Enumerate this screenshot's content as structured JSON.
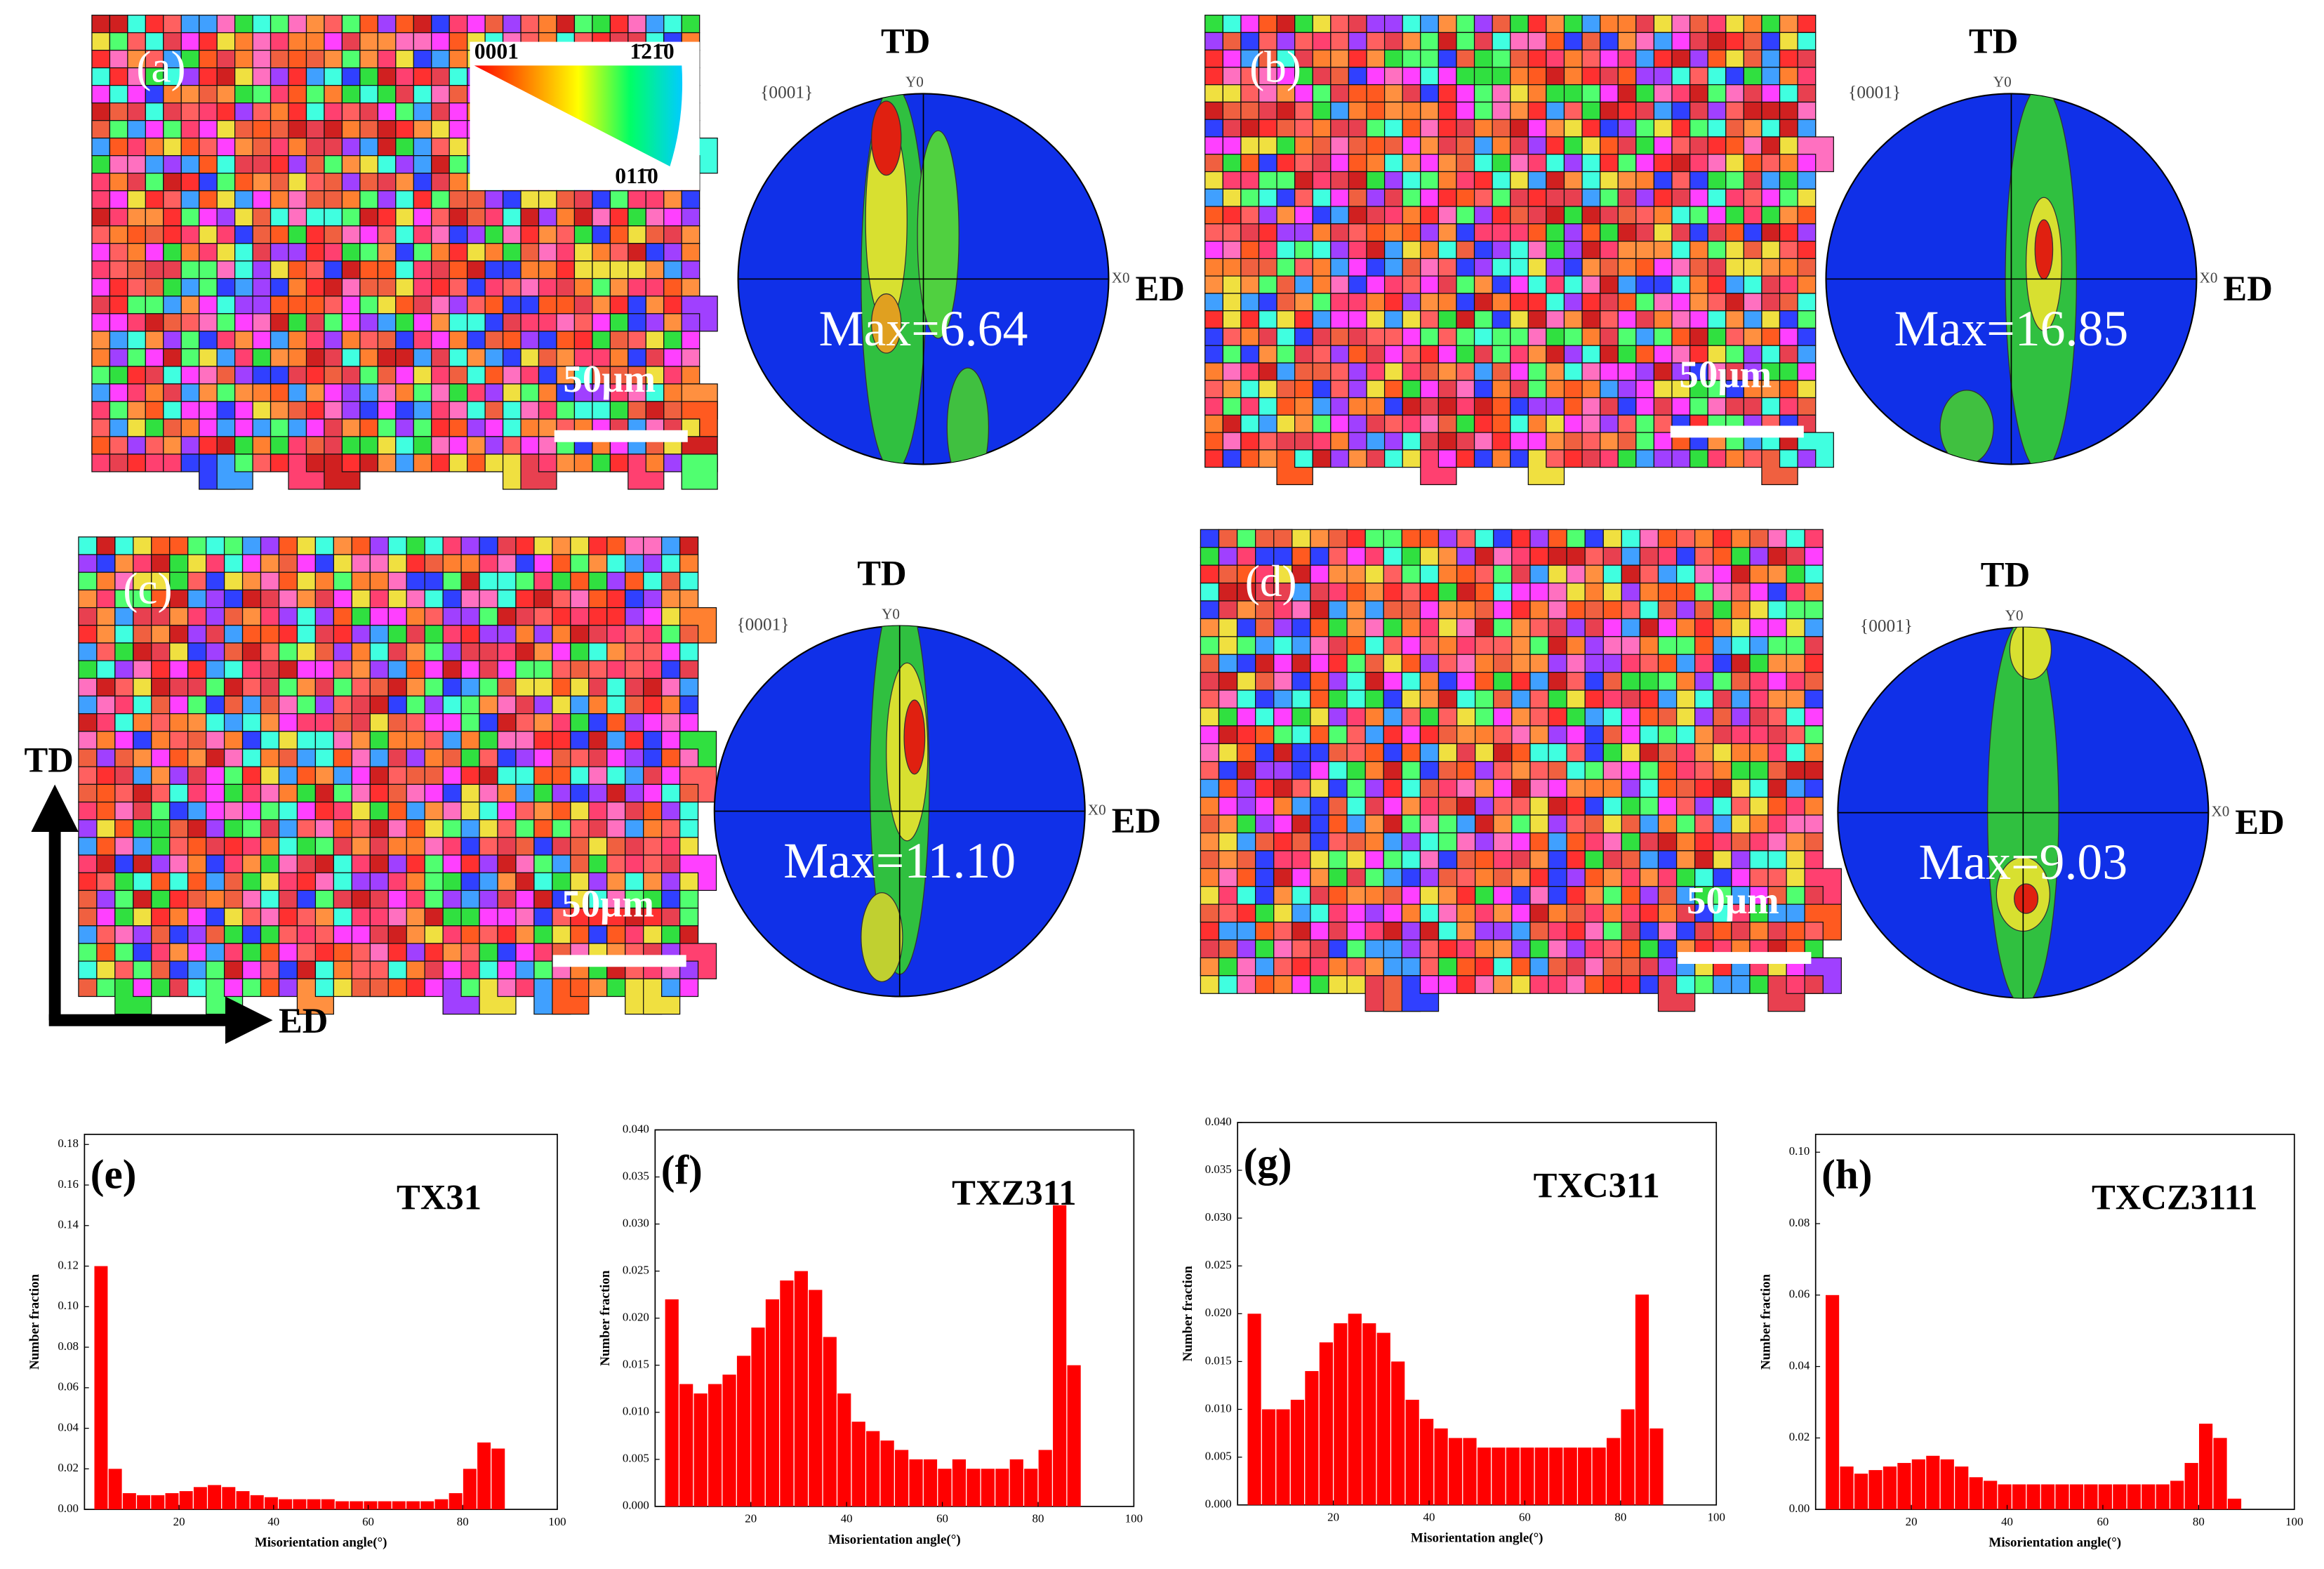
{
  "panels": [
    {
      "label": "(a)",
      "scale": "50μm",
      "pf": {
        "td": "TD",
        "ed": "ED",
        "set": "{0001}",
        "y0": "Y0",
        "x0": "X0",
        "max": "Max=6.64"
      }
    },
    {
      "label": "(b)",
      "scale": "50μm",
      "pf": {
        "td": "TD",
        "ed": "ED",
        "set": "{0001}",
        "y0": "Y0",
        "x0": "X0",
        "max": "Max=16.85"
      }
    },
    {
      "label": "(c)",
      "scale": "50μm",
      "pf": {
        "td": "TD",
        "ed": "ED",
        "set": "{0001}",
        "y0": "Y0",
        "x0": "X0",
        "max": "Max=11.10"
      }
    },
    {
      "label": "(d)",
      "scale": "50μm",
      "pf": {
        "td": "TD",
        "ed": "ED",
        "set": "{0001}",
        "y0": "Y0",
        "x0": "X0",
        "max": "Max=9.03"
      }
    }
  ],
  "key": [
    "0001",
    "1̄21̄0",
    "011̄0"
  ],
  "axes": {
    "td": "TD",
    "ed": "ED"
  },
  "chart_data": [
    {
      "type": "histogram",
      "label": "(e)",
      "title": "TX31",
      "xlabel": "Misorientation angle(°)",
      "ylabel": "Number fraction",
      "color": "#ff0000",
      "bins": [
        2,
        5,
        8,
        11,
        14,
        17,
        20,
        23,
        26,
        29,
        32,
        35,
        38,
        41,
        44,
        47,
        50,
        53,
        56,
        59,
        62,
        65,
        68,
        71,
        74,
        77,
        80,
        83,
        86,
        89,
        92
      ],
      "values": [
        0.12,
        0.02,
        0.008,
        0.007,
        0.007,
        0.008,
        0.009,
        0.011,
        0.012,
        0.011,
        0.009,
        0.007,
        0.006,
        0.005,
        0.005,
        0.005,
        0.005,
        0.004,
        0.004,
        0.004,
        0.004,
        0.004,
        0.004,
        0.004,
        0.005,
        0.008,
        0.02,
        0.033,
        0.03,
        0.0
      ],
      "xlim": [
        0,
        100
      ],
      "xticks": [
        20,
        40,
        60,
        80,
        100
      ],
      "ylim": [
        0,
        0.185
      ],
      "yticks": [
        {
          "value": 0,
          "label": "0.00"
        },
        0.02,
        0.04,
        0.06,
        0.08,
        {
          "value": 0.1,
          "label": "0.10"
        },
        0.12,
        0.14,
        0.16,
        0.18
      ]
    },
    {
      "type": "histogram",
      "label": "(f)",
      "title": "TXZ311",
      "xlabel": "Misorientation angle(°)",
      "ylabel": "Number fraction",
      "color": "#ff0000",
      "bins": [
        2,
        5,
        8,
        11,
        14,
        17,
        20,
        23,
        26,
        29,
        32,
        35,
        38,
        41,
        44,
        47,
        50,
        53,
        56,
        59,
        62,
        65,
        68,
        71,
        74,
        77,
        80,
        83,
        86,
        89,
        92
      ],
      "values": [
        0.022,
        0.013,
        0.012,
        0.013,
        0.014,
        0.016,
        0.019,
        0.022,
        0.024,
        0.025,
        0.023,
        0.018,
        0.012,
        0.009,
        0.008,
        0.007,
        0.006,
        0.005,
        0.005,
        0.004,
        0.005,
        0.004,
        0.004,
        0.004,
        0.005,
        0.004,
        0.006,
        0.032,
        0.015,
        0.0
      ],
      "xlim": [
        0,
        100
      ],
      "xticks": [
        20,
        40,
        60,
        80,
        100
      ],
      "ylim": [
        0,
        0.04
      ],
      "yticks": [
        {
          "value": 0,
          "label": "0.000"
        },
        0.005,
        {
          "value": 0.01,
          "label": "0.010"
        },
        0.015,
        {
          "value": 0.02,
          "label": "0.020"
        },
        0.025,
        {
          "value": 0.03,
          "label": "0.030"
        },
        0.035,
        {
          "value": 0.04,
          "label": "0.040"
        }
      ]
    },
    {
      "type": "histogram",
      "label": "(g)",
      "title": "TXC311",
      "xlabel": "Misorientation angle(°)",
      "ylabel": "Number fraction",
      "color": "#ff0000",
      "bins": [
        2,
        5,
        8,
        11,
        14,
        17,
        20,
        23,
        26,
        29,
        32,
        35,
        38,
        41,
        44,
        47,
        50,
        53,
        56,
        59,
        62,
        65,
        68,
        71,
        74,
        77,
        80,
        83,
        86,
        89,
        92
      ],
      "values": [
        0.02,
        0.01,
        0.01,
        0.011,
        0.014,
        0.017,
        0.019,
        0.02,
        0.019,
        0.018,
        0.015,
        0.011,
        0.009,
        0.008,
        0.007,
        0.007,
        0.006,
        0.006,
        0.006,
        0.006,
        0.006,
        0.006,
        0.006,
        0.006,
        0.006,
        0.007,
        0.01,
        0.022,
        0.008,
        0.0
      ],
      "xlim": [
        0,
        100
      ],
      "xticks": [
        20,
        40,
        60,
        80,
        100
      ],
      "ylim": [
        0,
        0.04
      ],
      "yticks": [
        {
          "value": 0,
          "label": "0.000"
        },
        0.005,
        {
          "value": 0.01,
          "label": "0.010"
        },
        0.015,
        {
          "value": 0.02,
          "label": "0.020"
        },
        0.025,
        {
          "value": 0.03,
          "label": "0.030"
        },
        0.035,
        {
          "value": 0.04,
          "label": "0.040"
        }
      ]
    },
    {
      "type": "histogram",
      "label": "(h)",
      "title": "TXCZ3111",
      "xlabel": "Misorientation angle(°)",
      "ylabel": "Number fraction",
      "color": "#ff0000",
      "bins": [
        2,
        5,
        8,
        11,
        14,
        17,
        20,
        23,
        26,
        29,
        32,
        35,
        38,
        41,
        44,
        47,
        50,
        53,
        56,
        59,
        62,
        65,
        68,
        71,
        74,
        77,
        80,
        83,
        86,
        89,
        92
      ],
      "values": [
        0.06,
        0.012,
        0.01,
        0.011,
        0.012,
        0.013,
        0.014,
        0.015,
        0.014,
        0.012,
        0.009,
        0.008,
        0.007,
        0.007,
        0.007,
        0.007,
        0.007,
        0.007,
        0.007,
        0.007,
        0.007,
        0.007,
        0.007,
        0.007,
        0.008,
        0.013,
        0.024,
        0.02,
        0.003,
        0.0
      ],
      "xlim": [
        0,
        100
      ],
      "xticks": [
        20,
        40,
        60,
        80,
        100
      ],
      "ylim": [
        0,
        0.105
      ],
      "yticks": [
        {
          "value": 0,
          "label": "0.00"
        },
        0.02,
        0.04,
        0.06,
        0.08,
        {
          "value": 0.1,
          "label": "0.10"
        }
      ]
    }
  ]
}
